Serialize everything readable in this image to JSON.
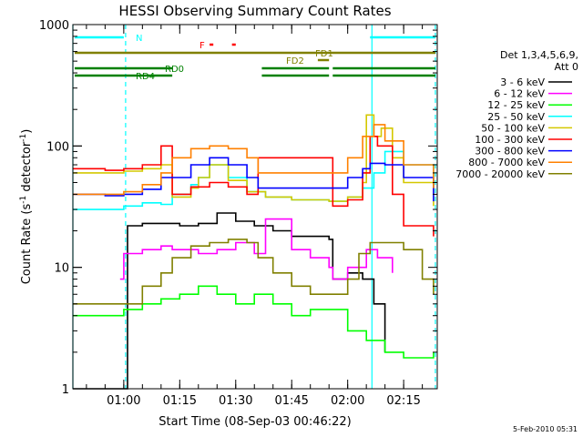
{
  "chart_data": {
    "type": "line",
    "title": "HESSI Observing Summary Count Rates",
    "xlabel": "Start Time (08-Sep-03 00:46:22)",
    "ylabel": "Count Rate (s",
    "ylabel_sup": "-1",
    "ylabel_tail": " detector",
    "ylabel_sup2": "-1",
    "ylabel_close": ")",
    "yscale": "log",
    "xlim": [
      "00:46:22",
      "02:24:00"
    ],
    "ylim": [
      1,
      1000
    ],
    "x_ticks": [
      "01:00",
      "01:15",
      "01:30",
      "01:45",
      "02:00",
      "02:15"
    ],
    "y_ticks": [
      "1",
      "10",
      "100",
      "1000"
    ],
    "grid": false,
    "legend_position": "right",
    "legend_header": [
      "Det 1,3,4,5,6,9,",
      "Att 0"
    ],
    "footer_date": "5-Feb-2010 05:31",
    "series": [
      {
        "name": "3 - 6 keV",
        "color": "#000000",
        "x": [
          "00:46",
          "01:00",
          "01:01",
          "01:05",
          "01:10",
          "01:15",
          "01:20",
          "01:25",
          "01:30",
          "01:35",
          "01:40",
          "01:45",
          "01:50",
          "01:55",
          "01:56",
          "02:00",
          "02:04",
          "02:07",
          "02:10"
        ],
        "y": [
          1.0,
          1.0,
          22,
          23,
          23,
          22,
          23,
          28,
          24,
          22,
          20,
          18,
          18,
          17,
          8,
          9,
          8,
          5,
          2
        ]
      },
      {
        "name": "6 - 12 keV",
        "color": "#ff00ff",
        "x": [
          "00:59",
          "01:00",
          "01:05",
          "01:10",
          "01:13",
          "01:20",
          "01:25",
          "01:30",
          "01:35",
          "01:38",
          "01:45",
          "01:50",
          "01:55",
          "01:56",
          "02:00",
          "02:05",
          "02:08",
          "02:12"
        ],
        "y": [
          8,
          13,
          14,
          15,
          14,
          13,
          14,
          16,
          13,
          25,
          14,
          12,
          10,
          8,
          10,
          14,
          12,
          9
        ]
      },
      {
        "name": "12 - 25 keV",
        "color": "#00ff00",
        "x": [
          "00:46",
          "01:00",
          "01:05",
          "01:10",
          "01:15",
          "01:20",
          "01:25",
          "01:30",
          "01:35",
          "01:40",
          "01:45",
          "01:50",
          "01:55",
          "02:00",
          "02:05",
          "02:10",
          "02:15",
          "02:23"
        ],
        "y": [
          4,
          4.5,
          5,
          5.5,
          6,
          7,
          6,
          5,
          6,
          5,
          4,
          4.5,
          4.5,
          3,
          2.5,
          2,
          1.8,
          2
        ]
      },
      {
        "name": "25 - 50 keV",
        "color": "#00ffff",
        "x": [
          "00:46",
          "01:00",
          "01:05",
          "01:10",
          "01:13",
          "01:18",
          "01:20",
          "01:23",
          "01:28",
          "01:33",
          "01:38",
          "01:45",
          "01:50",
          "01:55",
          "02:00",
          "02:04",
          "02:07",
          "02:10",
          "02:15",
          "02:23"
        ],
        "y": [
          30,
          32,
          34,
          33,
          40,
          48,
          55,
          70,
          55,
          42,
          38,
          36,
          36,
          35,
          38,
          45,
          60,
          90,
          70,
          45
        ]
      },
      {
        "name": "50 - 100 keV",
        "color": "#d4c800",
        "x": [
          "00:46",
          "01:00",
          "01:05",
          "01:10",
          "01:13",
          "01:18",
          "01:20",
          "01:23",
          "01:28",
          "01:33",
          "01:38",
          "01:45",
          "01:50",
          "01:55",
          "02:00",
          "02:04",
          "02:05",
          "02:07",
          "02:09",
          "02:12",
          "02:15",
          "02:23"
        ],
        "y": [
          60,
          62,
          65,
          70,
          38,
          45,
          55,
          70,
          52,
          42,
          38,
          36,
          36,
          35,
          38,
          50,
          180,
          120,
          140,
          80,
          50,
          32
        ]
      },
      {
        "name": "100 - 300 keV",
        "color": "#ff0000",
        "x": [
          "00:46",
          "00:55",
          "01:00",
          "01:05",
          "01:10",
          "01:13",
          "01:18",
          "01:23",
          "01:28",
          "01:33",
          "01:36",
          "01:45",
          "01:55",
          "01:56",
          "02:00",
          "02:04",
          "02:06",
          "02:08",
          "02:12",
          "02:15",
          "02:23"
        ],
        "y": [
          65,
          63,
          65,
          70,
          100,
          40,
          46,
          50,
          46,
          40,
          80,
          80,
          80,
          32,
          36,
          60,
          120,
          100,
          40,
          22,
          18
        ]
      },
      {
        "name": "300 - 800 keV",
        "color": "#0000ff",
        "x": [
          "00:46",
          "00:55",
          "01:00",
          "01:05",
          "01:10",
          "01:13",
          "01:18",
          "01:23",
          "01:28",
          "01:33",
          "01:36",
          "01:45",
          "01:55",
          "01:56",
          "02:00",
          "02:04",
          "02:06",
          "02:10",
          "02:15",
          "02:23"
        ],
        "y": [
          40,
          39,
          40,
          44,
          55,
          55,
          70,
          80,
          70,
          55,
          45,
          45,
          45,
          45,
          55,
          65,
          72,
          70,
          55,
          35
        ]
      },
      {
        "name": "800 - 7000 keV",
        "color": "#ff8000",
        "x": [
          "00:46",
          "00:55",
          "01:00",
          "01:05",
          "01:10",
          "01:13",
          "01:18",
          "01:23",
          "01:28",
          "01:33",
          "01:36",
          "01:45",
          "01:55",
          "01:56",
          "02:00",
          "02:04",
          "02:07",
          "02:10",
          "02:15",
          "02:23"
        ],
        "y": [
          40,
          40,
          42,
          48,
          60,
          80,
          95,
          100,
          95,
          80,
          60,
          60,
          60,
          60,
          80,
          120,
          150,
          110,
          70,
          45
        ]
      },
      {
        "name": "7000 - 20000 keV",
        "color": "#808000",
        "x": [
          "00:46",
          "01:00",
          "01:05",
          "01:10",
          "01:13",
          "01:18",
          "01:23",
          "01:28",
          "01:33",
          "01:36",
          "01:40",
          "01:45",
          "01:50",
          "01:55",
          "02:00",
          "02:03",
          "02:06",
          "02:10",
          "02:15",
          "02:20",
          "02:23"
        ],
        "y": [
          5,
          5,
          7,
          9,
          12,
          15,
          16,
          17,
          16,
          12,
          9,
          7,
          6,
          6,
          8,
          13,
          16,
          16,
          14,
          8,
          6
        ]
      }
    ],
    "flags": [
      {
        "label": "N",
        "color": "#00ffff",
        "segments": [
          [
            "00:46",
            "01:00"
          ],
          [
            "02:06",
            "02:24"
          ]
        ]
      },
      {
        "label": "F",
        "color": "#ff0000",
        "segments": [
          [
            "01:23",
            "01:24"
          ],
          [
            "01:29",
            "01:30"
          ]
        ]
      },
      {
        "label": "FD1",
        "color": "#808000",
        "segments": [
          [
            "00:46",
            "02:24"
          ]
        ]
      },
      {
        "label": "FD2",
        "color": "#808000",
        "segments": [
          [
            "01:52",
            "01:55"
          ]
        ]
      },
      {
        "label": "RD0",
        "color": "#008000",
        "segments": [
          [
            "00:46",
            "01:13"
          ],
          [
            "01:37",
            "01:55"
          ],
          [
            "01:56",
            "02:24"
          ]
        ]
      },
      {
        "label": "RD4",
        "color": "#008000",
        "segments": [
          [
            "00:46",
            "01:13"
          ],
          [
            "01:37",
            "01:55"
          ],
          [
            "01:56",
            "02:24"
          ]
        ]
      }
    ],
    "vertical_markers": [
      {
        "time": "00:46:22",
        "style": "solid",
        "color": "#00ffff"
      },
      {
        "time": "01:00:30",
        "style": "dashed",
        "color": "#00ffff"
      },
      {
        "time": "02:06:30",
        "style": "solid",
        "color": "#00ffff"
      },
      {
        "time": "02:23:30",
        "style": "dashed",
        "color": "#00ffff"
      }
    ]
  }
}
